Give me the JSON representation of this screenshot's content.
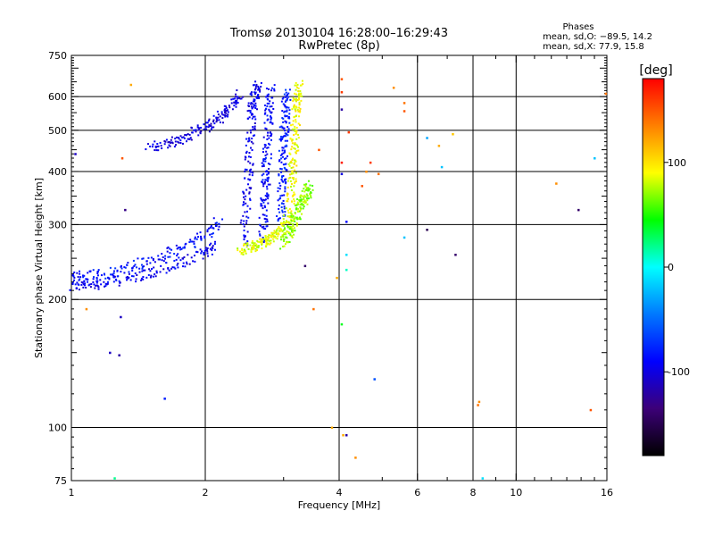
{
  "chart_data": {
    "type": "scatter",
    "title": "Tromsø 20130104 16:28:00–16:29:43",
    "subtitle": "RwPretec (8p)",
    "stats": {
      "heading": "Phases",
      "line_o": "mean, sd,O: −89.5, 14.2",
      "line_x": "mean, sd,X: 77.9, 15.8"
    },
    "xlabel": "Frequency [MHz]",
    "ylabel": "Stationary phase Virtual Height [km]",
    "xscale": "log",
    "yscale": "log",
    "xlim": [
      1,
      16
    ],
    "ylim": [
      75,
      750
    ],
    "xticks": [
      1,
      2,
      4,
      6,
      8,
      10,
      16
    ],
    "yticks": [
      75,
      100,
      200,
      300,
      400,
      500,
      600,
      750
    ],
    "grid": true,
    "colorbar": {
      "label": "[deg]",
      "range": [
        -180,
        180
      ],
      "ticks": [
        100,
        0,
        -100
      ],
      "colors": [
        "#000000",
        "#3c0078",
        "#0000ff",
        "#0078ff",
        "#00ffff",
        "#00ff00",
        "#ffff00",
        "#ff8000",
        "#ff0000"
      ]
    },
    "series": [
      {
        "traces": [
          {
            "f": [
              1.0,
              1.08,
              1.18,
              1.3,
              1.45,
              1.62,
              1.8,
              2.0,
              2.1
            ],
            "h": [
              215,
              216,
              219,
              222,
              228,
              236,
              245,
              258,
              270
            ],
            "phase": -95
          },
          {
            "f": [
              1.0,
              1.1,
              1.25,
              1.4,
              1.6,
              1.8,
              2.0,
              2.15
            ],
            "h": [
              226,
              228,
              232,
              240,
              252,
              265,
              285,
              305
            ],
            "phase": -85
          },
          {
            "f": [
              1.5,
              1.7,
              1.9,
              2.1,
              2.25,
              2.4
            ],
            "h": [
              455,
              470,
              495,
              520,
              560,
              610
            ],
            "phase": -100
          },
          {
            "f": [
              2.45,
              2.5,
              2.55,
              2.62
            ],
            "h": [
              270,
              400,
              560,
              640
            ],
            "phase": -95
          },
          {
            "f": [
              2.7,
              2.75,
              2.8
            ],
            "h": [
              280,
              420,
              630
            ],
            "phase": -90
          },
          {
            "f": [
              2.95,
              3.0,
              3.05
            ],
            "h": [
              300,
              460,
              610
            ],
            "phase": -80
          }
        ]
      },
      {
        "traces": [
          {
            "f": [
              2.4,
              2.55,
              2.7,
              2.85,
              3.0,
              3.1
            ],
            "h": [
              262,
              266,
              272,
              280,
              295,
              320
            ],
            "phase": 85
          },
          {
            "f": [
              3.1,
              3.15,
              3.2,
              3.25
            ],
            "h": [
              330,
              420,
              540,
              640
            ],
            "phase": 90
          },
          {
            "f": [
              3.0,
              3.15,
              3.3,
              3.45
            ],
            "h": [
              270,
              300,
              340,
              370
            ],
            "phase": 70
          }
        ]
      }
    ],
    "scatter_points": [
      {
        "f": 1.02,
        "h": 440,
        "phase": -110
      },
      {
        "f": 1.08,
        "h": 190,
        "phase": 130
      },
      {
        "f": 1.22,
        "h": 150,
        "phase": -110
      },
      {
        "f": 1.25,
        "h": 76,
        "phase": 20
      },
      {
        "f": 1.28,
        "h": 148,
        "phase": -120
      },
      {
        "f": 1.29,
        "h": 182,
        "phase": -110
      },
      {
        "f": 1.3,
        "h": 430,
        "phase": 150
      },
      {
        "f": 1.32,
        "h": 325,
        "phase": -130
      },
      {
        "f": 1.36,
        "h": 640,
        "phase": 120
      },
      {
        "f": 1.62,
        "h": 117,
        "phase": -80
      },
      {
        "f": 3.35,
        "h": 240,
        "phase": -140
      },
      {
        "f": 3.5,
        "h": 190,
        "phase": 140
      },
      {
        "f": 3.6,
        "h": 450,
        "phase": 150
      },
      {
        "f": 3.85,
        "h": 100,
        "phase": 120
      },
      {
        "f": 3.95,
        "h": 225,
        "phase": 120
      },
      {
        "f": 4.05,
        "h": 660,
        "phase": 150
      },
      {
        "f": 4.05,
        "h": 615,
        "phase": 160
      },
      {
        "f": 4.05,
        "h": 560,
        "phase": -120
      },
      {
        "f": 4.05,
        "h": 420,
        "phase": 170
      },
      {
        "f": 4.05,
        "h": 395,
        "phase": -100
      },
      {
        "f": 4.05,
        "h": 175,
        "phase": 40
      },
      {
        "f": 4.08,
        "h": 96,
        "phase": 120
      },
      {
        "f": 4.15,
        "h": 305,
        "phase": -90
      },
      {
        "f": 4.15,
        "h": 255,
        "phase": -10
      },
      {
        "f": 4.15,
        "h": 235,
        "phase": 10
      },
      {
        "f": 4.15,
        "h": 96,
        "phase": -120
      },
      {
        "f": 4.2,
        "h": 495,
        "phase": 160
      },
      {
        "f": 4.35,
        "h": 85,
        "phase": 130
      },
      {
        "f": 4.5,
        "h": 370,
        "phase": 150
      },
      {
        "f": 4.6,
        "h": 400,
        "phase": 130
      },
      {
        "f": 4.7,
        "h": 420,
        "phase": 160
      },
      {
        "f": 4.8,
        "h": 130,
        "phase": -60
      },
      {
        "f": 4.9,
        "h": 395,
        "phase": 140
      },
      {
        "f": 5.3,
        "h": 630,
        "phase": 130
      },
      {
        "f": 5.6,
        "h": 580,
        "phase": 140
      },
      {
        "f": 5.6,
        "h": 555,
        "phase": 150
      },
      {
        "f": 5.6,
        "h": 280,
        "phase": -20
      },
      {
        "f": 6.3,
        "h": 480,
        "phase": -30
      },
      {
        "f": 6.3,
        "h": 292,
        "phase": -150
      },
      {
        "f": 6.7,
        "h": 460,
        "phase": 120
      },
      {
        "f": 6.8,
        "h": 410,
        "phase": -20
      },
      {
        "f": 7.2,
        "h": 490,
        "phase": 110
      },
      {
        "f": 7.3,
        "h": 255,
        "phase": -140
      },
      {
        "f": 8.2,
        "h": 113,
        "phase": 140
      },
      {
        "f": 8.25,
        "h": 115,
        "phase": 130
      },
      {
        "f": 8.4,
        "h": 76,
        "phase": -10
      },
      {
        "f": 12.3,
        "h": 375,
        "phase": 130
      },
      {
        "f": 13.8,
        "h": 325,
        "phase": -140
      },
      {
        "f": 14.7,
        "h": 110,
        "phase": 150
      },
      {
        "f": 15.0,
        "h": 430,
        "phase": -20
      },
      {
        "f": 15.9,
        "h": 610,
        "phase": 140
      }
    ]
  }
}
